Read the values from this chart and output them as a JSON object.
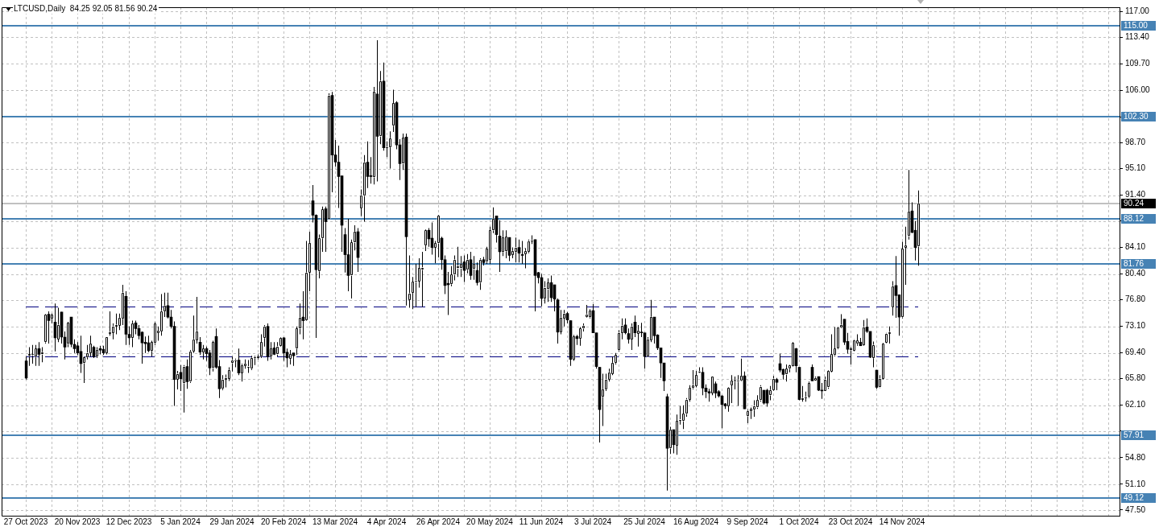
{
  "chart_data": {
    "type": "candlestick",
    "title": "LTCUSD,Daily  84.25 92.05 81.56 90.24",
    "categories": [
      "27 Oct 2023",
      null,
      null,
      null,
      null,
      null,
      null,
      null,
      null,
      null,
      null,
      null,
      null,
      null,
      null,
      null,
      "20 Nov 2023",
      null,
      null,
      null,
      null,
      null,
      null,
      null,
      null,
      null,
      null,
      null,
      null,
      null,
      null,
      null,
      "12 Dec 2023",
      null,
      null,
      null,
      null,
      null,
      null,
      null,
      null,
      null,
      null,
      null,
      null,
      null,
      null,
      null,
      "5 Jan 2024",
      null,
      null,
      null,
      null,
      null,
      null,
      null,
      null,
      null,
      null,
      null,
      null,
      null,
      null,
      null,
      "29 Jan 2024",
      null,
      null,
      null,
      null,
      null,
      null,
      null,
      null,
      null,
      null,
      null,
      null,
      null,
      null,
      null,
      "20 Feb 2024",
      null,
      null,
      null,
      null,
      null,
      null,
      null,
      null,
      null,
      null,
      null,
      null,
      null,
      null,
      null,
      "13 Mar 2024",
      null,
      null,
      null,
      null,
      null,
      null,
      null,
      null,
      null,
      null,
      null,
      null,
      null,
      null,
      null,
      "4 Apr 2024",
      null,
      null,
      null,
      null,
      null,
      null,
      null,
      null,
      null,
      null,
      null,
      null,
      null,
      null,
      null,
      "26 Apr 2024",
      null,
      null,
      null,
      null,
      null,
      null,
      null,
      null,
      null,
      null,
      null,
      null,
      null,
      null,
      null,
      "20 May 2024",
      null,
      null,
      null,
      null,
      null,
      null,
      null,
      null,
      null,
      null,
      null,
      null,
      null,
      null,
      null,
      "11 Jun 2024",
      null,
      null,
      null,
      null,
      null,
      null,
      null,
      null,
      null,
      null,
      null,
      null,
      null,
      null,
      null,
      "3 Jul 2024",
      null,
      null,
      null,
      null,
      null,
      null,
      null,
      null,
      null,
      null,
      null,
      null,
      null,
      null,
      null,
      "25 Jul 2024",
      null,
      null,
      null,
      null,
      null,
      null,
      null,
      null,
      null,
      null,
      null,
      null,
      null,
      null,
      null,
      "16 Aug 2024",
      null,
      null,
      null,
      null,
      null,
      null,
      null,
      null,
      null,
      null,
      null,
      null,
      null,
      null,
      null,
      "9 Sep 2024",
      null,
      null,
      null,
      null,
      null,
      null,
      null,
      null,
      null,
      null,
      null,
      null,
      null,
      null,
      null,
      "1 Oct 2024",
      null,
      null,
      null,
      null,
      null,
      null,
      null,
      null,
      null,
      null,
      null,
      null,
      null,
      null,
      null,
      "23 Oct 2024",
      null,
      null,
      null,
      null,
      null,
      null,
      null,
      null,
      null,
      null,
      null,
      null,
      null,
      null,
      null,
      "14 Nov 2024",
      null,
      null,
      null,
      null,
      null,
      null,
      null,
      null,
      null,
      null,
      null,
      null,
      null,
      null,
      null,
      null,
      null,
      null,
      null,
      null,
      null,
      null,
      null,
      null,
      null,
      null,
      null,
      null,
      null,
      null,
      null,
      null,
      null,
      null,
      null,
      null,
      null,
      null,
      null,
      null,
      null,
      null,
      null,
      null,
      null,
      null,
      null,
      null,
      null,
      null,
      null,
      null,
      null,
      null,
      null,
      null,
      null,
      null,
      null,
      null,
      null,
      null,
      null,
      null,
      null,
      null,
      null
    ],
    "ohlc": [
      [
        68.3,
        68.9,
        65.7,
        65.9
      ],
      [
        69.0,
        70.2,
        67.6,
        69.2
      ],
      [
        69.1,
        70.5,
        67.9,
        69.2
      ],
      [
        68.9,
        70.5,
        67.6,
        70.0
      ],
      [
        70.0,
        70.9,
        67.6,
        69.2
      ],
      [
        69.2,
        70.2,
        68.1,
        69.5
      ],
      [
        70.9,
        74.8,
        70.7,
        74.7
      ],
      [
        74.8,
        75.2,
        70.7,
        73.9
      ],
      [
        74.2,
        74.9,
        73.5,
        74.7
      ],
      [
        73.7,
        76.3,
        69.6,
        71.5
      ],
      [
        71.3,
        75.7,
        70.9,
        73.3
      ],
      [
        75.1,
        75.1,
        70.7,
        71.6
      ],
      [
        71.6,
        72.4,
        68.5,
        70.2
      ],
      [
        70.7,
        73.7,
        70.2,
        73.6
      ],
      [
        74.4,
        74.4,
        70.2,
        70.6
      ],
      [
        70.6,
        71.3,
        69.4,
        70.0
      ],
      [
        70.4,
        70.9,
        69.1,
        69.4
      ],
      [
        69.6,
        71.8,
        66.6,
        67.9
      ],
      [
        68.0,
        68.9,
        65.2,
        68.8
      ],
      [
        68.8,
        70.5,
        68.5,
        69.4
      ],
      [
        69.4,
        71.8,
        68.9,
        70.7
      ],
      [
        70.2,
        70.4,
        68.7,
        68.9
      ],
      [
        68.9,
        70.2,
        68.7,
        69.8
      ],
      [
        70.0,
        70.4,
        69.2,
        69.8
      ],
      [
        69.9,
        70.4,
        69.1,
        69.4
      ],
      [
        69.4,
        71.6,
        69.2,
        71.6
      ],
      [
        72.1,
        75.2,
        71.8,
        72.3
      ],
      [
        72.2,
        73.5,
        71.3,
        73.1
      ],
      [
        73.1,
        74.9,
        72.0,
        73.3
      ],
      [
        73.2,
        74.9,
        72.6,
        74.3
      ],
      [
        74.2,
        78.9,
        73.3,
        77.8
      ],
      [
        77.3,
        78.0,
        70.5,
        72.0
      ],
      [
        72.0,
        73.1,
        70.5,
        71.5
      ],
      [
        71.5,
        73.9,
        70.2,
        73.5
      ],
      [
        73.6,
        73.9,
        72.0,
        72.8
      ],
      [
        72.8,
        73.3,
        71.3,
        71.8
      ],
      [
        72.3,
        72.4,
        67.9,
        70.8
      ],
      [
        70.9,
        71.7,
        69.4,
        70.7
      ],
      [
        70.8,
        71.8,
        69.5,
        69.7
      ],
      [
        69.7,
        71.1,
        68.9,
        70.9
      ],
      [
        70.8,
        73.7,
        70.5,
        73.5
      ],
      [
        72.2,
        73.1,
        71.1,
        72.5
      ],
      [
        72.4,
        77.6,
        71.8,
        75.2
      ],
      [
        75.2,
        77.8,
        74.4,
        76.0
      ],
      [
        76.0,
        77.8,
        74.2,
        74.4
      ],
      [
        74.4,
        75.4,
        72.8,
        73.1
      ],
      [
        73.1,
        73.8,
        62.0,
        65.7
      ],
      [
        65.7,
        66.9,
        64.3,
        66.5
      ],
      [
        66.7,
        67.7,
        64.1,
        65.8
      ],
      [
        65.2,
        67.7,
        61.1,
        67.5
      ],
      [
        67.5,
        68.5,
        64.4,
        65.4
      ],
      [
        65.4,
        69.8,
        65.2,
        69.6
      ],
      [
        69.6,
        74.6,
        69.4,
        71.3
      ],
      [
        71.2,
        77.2,
        70.7,
        72.4
      ],
      [
        70.9,
        71.6,
        69.1,
        69.5
      ],
      [
        69.5,
        70.5,
        68.5,
        70.0
      ],
      [
        70.0,
        70.3,
        68.3,
        69.3
      ],
      [
        69.4,
        69.8,
        66.3,
        67.3
      ],
      [
        67.3,
        71.1,
        66.8,
        70.9
      ],
      [
        71.7,
        72.8,
        67.2,
        67.4
      ],
      [
        67.5,
        68.4,
        63.1,
        64.4
      ],
      [
        64.4,
        66.3,
        64.2,
        65.7
      ],
      [
        65.7,
        66.4,
        64.6,
        65.9
      ],
      [
        65.8,
        67.4,
        65.5,
        67.0
      ],
      [
        68.0,
        68.9,
        66.8,
        68.4
      ],
      [
        68.3,
        68.6,
        67.4,
        68.4
      ],
      [
        68.4,
        70.0,
        66.3,
        66.6
      ],
      [
        66.6,
        67.9,
        65.4,
        67.7
      ],
      [
        67.6,
        68.5,
        67.2,
        67.9
      ],
      [
        67.4,
        68.4,
        66.6,
        67.5
      ],
      [
        67.2,
        69.0,
        67.0,
        68.7
      ],
      [
        68.7,
        69.0,
        67.7,
        68.8
      ],
      [
        68.7,
        69.2,
        68.5,
        68.9
      ],
      [
        68.9,
        72.0,
        68.7,
        70.9
      ],
      [
        71.5,
        73.3,
        70.3,
        73.1
      ],
      [
        73.1,
        73.5,
        68.3,
        68.9
      ],
      [
        68.9,
        70.9,
        68.5,
        70.0
      ],
      [
        70.1,
        70.9,
        69.1,
        69.2
      ],
      [
        69.2,
        70.9,
        68.9,
        70.3
      ],
      [
        70.4,
        71.6,
        70.3,
        71.5
      ],
      [
        71.5,
        71.6,
        68.3,
        69.4
      ],
      [
        69.5,
        70.0,
        67.4,
        68.7
      ],
      [
        68.6,
        69.8,
        67.8,
        69.2
      ],
      [
        69.4,
        69.4,
        67.6,
        69.0
      ],
      [
        70.0,
        73.1,
        69.1,
        72.8
      ],
      [
        72.8,
        76.3,
        72.0,
        74.3
      ],
      [
        74.4,
        78.0,
        71.3,
        73.9
      ],
      [
        74.0,
        85.0,
        73.9,
        80.6
      ],
      [
        80.6,
        86.3,
        78.0,
        84.7
      ],
      [
        90.6,
        92.8,
        87.6,
        88.6
      ],
      [
        88.6,
        88.7,
        71.5,
        81.0
      ],
      [
        80.8,
        85.9,
        79.8,
        85.4
      ],
      [
        85.4,
        89.8,
        83.5,
        89.4
      ],
      [
        89.5,
        89.8,
        83.5,
        87.7
      ],
      [
        88.1,
        105.6,
        88.0,
        105.3
      ],
      [
        105.3,
        105.8,
        91.8,
        97.0
      ],
      [
        97.0,
        99.1,
        95.4,
        96.0
      ],
      [
        96.0,
        98.3,
        89.6,
        94.0
      ],
      [
        94.1,
        94.1,
        83.5,
        87.2
      ],
      [
        85.9,
        86.8,
        80.6,
        83.1
      ],
      [
        83.1,
        88.1,
        78.0,
        80.2
      ],
      [
        80.2,
        85.2,
        77.0,
        84.8
      ],
      [
        84.8,
        87.2,
        83.7,
        86.3
      ],
      [
        86.3,
        86.8,
        80.7,
        82.7
      ],
      [
        89.6,
        92.2,
        88.5,
        91.4
      ],
      [
        91.3,
        97.0,
        87.7,
        96.0
      ],
      [
        96.0,
        98.9,
        92.4,
        94.0
      ],
      [
        94.1,
        96.7,
        93.0,
        94.0
      ],
      [
        93.9,
        106.5,
        92.9,
        105.8
      ],
      [
        105.5,
        113.0,
        93.3,
        99.6
      ],
      [
        99.6,
        108.7,
        98.5,
        107.3
      ],
      [
        107.3,
        109.9,
        97.6,
        98.0
      ],
      [
        98.0,
        98.9,
        96.7,
        98.1
      ],
      [
        98.1,
        100.3,
        95.1,
        99.3
      ],
      [
        101.1,
        106.1,
        100.2,
        104.2
      ],
      [
        104.3,
        104.5,
        97.8,
        98.4
      ],
      [
        98.4,
        99.2,
        93.5,
        95.8
      ],
      [
        95.8,
        100.0,
        94.9,
        99.4
      ],
      [
        99.5,
        100.0,
        76.0,
        85.6
      ],
      [
        76.8,
        83.0,
        75.7,
        77.7
      ],
      [
        77.8,
        80.0,
        75.5,
        79.3
      ],
      [
        79.3,
        81.8,
        75.8,
        79.5
      ],
      [
        79.4,
        82.6,
        78.5,
        81.2
      ],
      [
        81.0,
        83.5,
        75.8,
        81.3
      ],
      [
        84.4,
        86.6,
        83.6,
        86.5
      ],
      [
        86.5,
        86.8,
        84.2,
        85.3
      ],
      [
        85.4,
        87.6,
        83.1,
        84.1
      ],
      [
        84.1,
        85.0,
        81.9,
        84.7
      ],
      [
        84.7,
        88.6,
        82.7,
        88.5
      ],
      [
        85.4,
        85.6,
        81.0,
        82.4
      ],
      [
        82.4,
        83.0,
        77.6,
        78.8
      ],
      [
        79.1,
        80.7,
        74.7,
        78.9
      ],
      [
        79.0,
        81.5,
        78.7,
        80.3
      ],
      [
        80.3,
        83.0,
        79.5,
        82.4
      ],
      [
        81.2,
        84.2,
        80.0,
        81.5
      ],
      [
        81.2,
        82.9,
        80.0,
        81.8
      ],
      [
        82.1,
        83.0,
        79.3,
        80.9
      ],
      [
        81.0,
        83.2,
        80.5,
        82.4
      ],
      [
        82.4,
        83.5,
        79.6,
        80.2
      ],
      [
        81.1,
        82.9,
        79.6,
        81.8
      ],
      [
        80.9,
        82.0,
        78.8,
        79.2
      ],
      [
        79.2,
        82.6,
        78.2,
        82.4
      ],
      [
        82.4,
        82.8,
        81.6,
        82.0
      ],
      [
        82.1,
        84.2,
        81.8,
        83.9
      ],
      [
        82.4,
        87.0,
        81.8,
        86.5
      ],
      [
        86.5,
        89.7,
        86.1,
        88.1
      ],
      [
        88.5,
        88.5,
        84.8,
        85.9
      ],
      [
        85.7,
        87.9,
        80.7,
        83.5
      ],
      [
        83.5,
        86.5,
        82.9,
        85.5
      ],
      [
        83.6,
        86.5,
        82.6,
        85.6
      ],
      [
        85.5,
        85.5,
        82.2,
        83.0
      ],
      [
        83.1,
        84.1,
        82.6,
        83.6
      ],
      [
        83.5,
        85.5,
        82.0,
        84.1
      ],
      [
        84.1,
        85.2,
        82.0,
        83.3
      ],
      [
        83.1,
        85.0,
        81.8,
        83.0
      ],
      [
        83.2,
        84.0,
        81.2,
        83.6
      ],
      [
        83.5,
        85.2,
        83.3,
        85.0
      ],
      [
        85.0,
        85.8,
        84.6,
        85.1
      ],
      [
        85.2,
        85.2,
        75.2,
        80.2
      ],
      [
        80.6,
        80.7,
        79.1,
        79.9
      ],
      [
        79.9,
        80.4,
        75.9,
        77.0
      ],
      [
        77.0,
        79.4,
        76.3,
        78.5
      ],
      [
        78.3,
        79.8,
        76.5,
        79.2
      ],
      [
        79.2,
        80.2,
        76.5,
        77.1
      ],
      [
        78.9,
        78.9,
        75.2,
        76.9
      ],
      [
        76.8,
        77.0,
        70.7,
        72.3
      ],
      [
        72.3,
        75.4,
        72.0,
        74.3
      ],
      [
        74.2,
        75.4,
        73.1,
        74.9
      ],
      [
        74.9,
        75.1,
        73.5,
        74.0
      ],
      [
        73.9,
        73.9,
        67.6,
        68.5
      ],
      [
        68.5,
        71.9,
        68.3,
        71.7
      ],
      [
        71.7,
        71.9,
        70.5,
        71.4
      ],
      [
        71.4,
        73.0,
        70.4,
        72.8
      ],
      [
        72.8,
        73.5,
        72.4,
        73.2
      ],
      [
        74.4,
        76.1,
        74.3,
        74.8
      ],
      [
        74.4,
        75.5,
        74.2,
        75.3
      ],
      [
        75.3,
        76.2,
        72.2,
        72.2
      ],
      [
        72.2,
        72.2,
        67.2,
        67.5
      ],
      [
        67.4,
        67.4,
        56.9,
        61.5
      ],
      [
        63.3,
        66.5,
        59.2,
        64.3
      ],
      [
        64.3,
        66.5,
        64.1,
        65.7
      ],
      [
        65.7,
        67.2,
        65.4,
        66.7
      ],
      [
        66.5,
        68.9,
        66.3,
        68.0
      ],
      [
        68.0,
        69.4,
        67.8,
        69.1
      ],
      [
        69.8,
        72.6,
        69.6,
        72.2
      ],
      [
        72.2,
        74.2,
        71.3,
        73.2
      ],
      [
        73.3,
        74.2,
        72.0,
        72.2
      ],
      [
        72.1,
        72.8,
        70.7,
        71.3
      ],
      [
        71.3,
        73.5,
        69.8,
        73.1
      ],
      [
        73.7,
        74.6,
        71.6,
        72.2
      ],
      [
        72.1,
        73.3,
        70.3,
        72.5
      ],
      [
        72.3,
        73.6,
        71.6,
        72.2
      ],
      [
        72.2,
        72.2,
        67.2,
        68.9
      ],
      [
        68.9,
        71.6,
        68.8,
        71.3
      ],
      [
        71.2,
        76.8,
        70.9,
        74.4
      ],
      [
        74.4,
        74.4,
        70.7,
        71.8
      ],
      [
        71.9,
        72.0,
        69.8,
        70.1
      ],
      [
        70.1,
        70.1,
        65.9,
        68.0
      ],
      [
        68.0,
        68.0,
        64.1,
        65.5
      ],
      [
        63.3,
        63.7,
        50.2,
        56.1
      ],
      [
        56.1,
        59.1,
        55.3,
        58.7
      ],
      [
        58.7,
        58.7,
        55.4,
        56.6
      ],
      [
        56.5,
        60.8,
        55.2,
        59.9
      ],
      [
        60.0,
        62.0,
        59.4,
        60.1
      ],
      [
        59.9,
        62.1,
        58.8,
        60.9
      ],
      [
        60.9,
        63.1,
        60.5,
        62.9
      ],
      [
        62.9,
        64.9,
        62.6,
        64.5
      ],
      [
        64.5,
        67.0,
        64.3,
        64.9
      ],
      [
        64.8,
        66.9,
        64.6,
        66.3
      ],
      [
        66.7,
        67.4,
        66.6,
        66.8
      ],
      [
        66.7,
        67.4,
        63.5,
        64.5
      ],
      [
        64.5,
        65.0,
        63.1,
        64.0
      ],
      [
        64.0,
        64.4,
        62.6,
        63.8
      ],
      [
        63.8,
        66.1,
        63.5,
        66.1
      ],
      [
        65.1,
        65.4,
        63.1,
        63.8
      ],
      [
        64.0,
        64.2,
        63.2,
        63.4
      ],
      [
        63.4,
        63.5,
        58.9,
        62.2
      ],
      [
        62.3,
        62.4,
        61.6,
        62.0
      ],
      [
        62.0,
        64.6,
        61.2,
        64.5
      ],
      [
        64.9,
        66.3,
        62.4,
        65.5
      ],
      [
        65.4,
        66.1,
        64.3,
        65.5
      ],
      [
        65.4,
        66.3,
        62.0,
        65.6
      ],
      [
        65.5,
        68.6,
        65.4,
        66.2
      ],
      [
        66.2,
        66.8,
        61.6,
        61.6
      ],
      [
        60.6,
        61.5,
        59.6,
        61.3
      ],
      [
        61.3,
        61.8,
        60.2,
        61.6
      ],
      [
        61.5,
        62.8,
        60.5,
        62.0
      ],
      [
        61.8,
        63.5,
        61.6,
        62.8
      ],
      [
        62.8,
        64.9,
        62.6,
        64.7
      ],
      [
        64.2,
        64.2,
        62.2,
        62.4
      ],
      [
        64.2,
        64.4,
        61.9,
        62.4
      ],
      [
        63.5,
        64.8,
        62.8,
        64.2
      ],
      [
        64.2,
        66.2,
        64.1,
        65.8
      ],
      [
        65.7,
        65.9,
        64.2,
        65.3
      ],
      [
        67.9,
        69.3,
        66.7,
        67.0
      ],
      [
        67.1,
        67.2,
        65.7,
        66.4
      ],
      [
        66.4,
        67.8,
        65.4,
        67.2
      ],
      [
        67.2,
        67.8,
        66.7,
        67.7
      ],
      [
        67.6,
        70.9,
        67.5,
        70.8
      ],
      [
        70.0,
        70.1,
        66.7,
        67.6
      ],
      [
        67.4,
        67.4,
        62.8,
        62.9
      ],
      [
        62.9,
        64.8,
        62.6,
        63.1
      ],
      [
        63.1,
        64.0,
        62.6,
        63.2
      ],
      [
        63.3,
        65.4,
        63.1,
        65.2
      ],
      [
        67.4,
        67.8,
        65.5,
        65.5
      ],
      [
        65.5,
        66.1,
        65.5,
        65.9
      ],
      [
        66.1,
        66.1,
        64.1,
        64.2
      ],
      [
        64.2,
        65.2,
        63.0,
        64.1
      ],
      [
        64.1,
        66.1,
        64.1,
        65.7
      ],
      [
        64.6,
        67.0,
        64.4,
        66.9
      ],
      [
        66.8,
        72.0,
        66.7,
        69.2
      ],
      [
        69.1,
        73.0,
        68.9,
        70.0
      ],
      [
        70.0,
        73.1,
        69.9,
        73.0
      ],
      [
        72.9,
        74.8,
        72.8,
        73.3
      ],
      [
        74.1,
        74.1,
        70.5,
        70.9
      ],
      [
        71.0,
        72.2,
        69.3,
        69.9
      ],
      [
        69.8,
        70.2,
        67.8,
        70.0
      ],
      [
        69.7,
        71.3,
        69.6,
        71.2
      ],
      [
        70.7,
        72.0,
        70.4,
        71.1
      ],
      [
        70.9,
        71.5,
        70.4,
        70.4
      ],
      [
        70.5,
        74.0,
        70.4,
        73.0
      ],
      [
        73.0,
        74.2,
        72.2,
        72.4
      ],
      [
        72.4,
        72.4,
        68.7,
        68.8
      ],
      [
        68.7,
        71.0,
        67.4,
        70.5
      ],
      [
        67.0,
        67.0,
        64.4,
        64.6
      ],
      [
        64.6,
        66.3,
        64.5,
        65.8
      ],
      [
        65.8,
        70.8,
        65.7,
        70.7
      ],
      [
        70.8,
        72.2,
        70.7,
        72.1
      ],
      [
        72.1,
        73.1,
        70.7,
        72.3
      ],
      [
        75.8,
        79.4,
        74.6,
        78.7
      ],
      [
        78.8,
        82.9,
        74.3,
        77.4
      ],
      [
        77.5,
        77.5,
        71.8,
        74.4
      ],
      [
        74.4,
        84.9,
        74.2,
        83.9
      ],
      [
        84.1,
        87.0,
        78.9,
        84.4
      ],
      [
        85.7,
        94.9,
        85.2,
        89.1
      ],
      [
        89.2,
        90.4,
        86.1,
        86.2
      ],
      [
        86.5,
        87.8,
        82.3,
        84.1
      ],
      [
        84.25,
        92.05,
        81.56,
        90.24
      ],
      null,
      null,
      null,
      null,
      null,
      null,
      null,
      null,
      null,
      null,
      null,
      null,
      null,
      null,
      null,
      null,
      null,
      null,
      null,
      null,
      null,
      null,
      null,
      null,
      null,
      null,
      null,
      null,
      null,
      null,
      null,
      null,
      null,
      null,
      null,
      null,
      null,
      null,
      null,
      null,
      null,
      null,
      null,
      null,
      null,
      null,
      null,
      null,
      null,
      null,
      null,
      null,
      null,
      null,
      null,
      null,
      null,
      null,
      null,
      null,
      null,
      null
    ],
    "colors": [
      "#000000",
      "#ffffff",
      "#ffffff",
      "#ffffff",
      "#000000",
      "#ffffff",
      "#ffffff",
      "#000000",
      "#ffffff",
      "#000000",
      "#ffffff",
      "#000000",
      "#000000",
      "#ffffff",
      "#000000",
      "#000000",
      "#000000",
      "#000000",
      "#ffffff",
      "#ffffff",
      "#ffffff",
      "#000000",
      "#ffffff",
      "#000000",
      "#000000",
      "#ffffff",
      "#ffffff",
      "#ffffff",
      "#ffffff",
      "#ffffff",
      "#ffffff",
      "#000000",
      "#000000",
      "#ffffff",
      "#000000",
      "#000000",
      "#000000",
      "#000000",
      "#000000",
      "#ffffff",
      "#ffffff",
      "#ffffff",
      "#ffffff",
      "#ffffff",
      "#000000",
      "#000000",
      "#000000",
      "#ffffff",
      "#000000",
      "#ffffff",
      "#000000",
      "#ffffff",
      "#ffffff",
      "#ffffff",
      "#000000",
      "#ffffff",
      "#000000",
      "#000000",
      "#ffffff",
      "#000000",
      "#000000",
      "#ffffff",
      "#ffffff",
      "#ffffff",
      "#ffffff",
      "#ffffff",
      "#000000",
      "#ffffff",
      "#ffffff",
      "#ffffff",
      "#ffffff",
      "#ffffff",
      "#ffffff",
      "#ffffff",
      "#ffffff",
      "#000000",
      "#ffffff",
      "#000000",
      "#ffffff",
      "#ffffff",
      "#000000",
      "#000000",
      "#ffffff",
      "#000000",
      "#ffffff",
      "#ffffff",
      "#000000",
      "#ffffff",
      "#ffffff",
      "#000000",
      "#000000",
      "#ffffff",
      "#ffffff",
      "#000000",
      "#ffffff",
      "#000000",
      "#000000",
      "#000000",
      "#000000",
      "#000000",
      "#000000",
      "#ffffff",
      "#ffffff",
      "#000000",
      "#ffffff",
      "#ffffff",
      "#000000",
      "#000000",
      "#ffffff",
      "#000000",
      "#ffffff",
      "#000000",
      "#ffffff",
      "#ffffff",
      "#ffffff",
      "#000000",
      "#000000",
      "#ffffff",
      "#000000",
      "#ffffff",
      "#ffffff",
      "#ffffff",
      "#ffffff",
      "#ffffff",
      "#ffffff",
      "#000000",
      "#000000",
      "#ffffff",
      "#ffffff",
      "#000000",
      "#000000",
      "#000000",
      "#ffffff",
      "#ffffff",
      "#ffffff",
      "#ffffff",
      "#000000",
      "#ffffff",
      "#000000",
      "#ffffff",
      "#000000",
      "#ffffff",
      "#000000",
      "#ffffff",
      "#ffffff",
      "#ffffff",
      "#000000",
      "#000000",
      "#ffffff",
      "#ffffff",
      "#000000",
      "#ffffff",
      "#ffffff",
      "#000000",
      "#000000",
      "#ffffff",
      "#ffffff",
      "#ffffff",
      "#000000",
      "#000000",
      "#000000",
      "#ffffff",
      "#ffffff",
      "#000000",
      "#000000",
      "#000000",
      "#ffffff",
      "#ffffff",
      "#000000",
      "#000000",
      "#ffffff",
      "#000000",
      "#ffffff",
      "#ffffff",
      "#ffffff",
      "#ffffff",
      "#000000",
      "#000000",
      "#000000",
      "#ffffff",
      "#ffffff",
      "#ffffff",
      "#ffffff",
      "#ffffff",
      "#ffffff",
      "#ffffff",
      "#000000",
      "#000000",
      "#ffffff",
      "#000000",
      "#ffffff",
      "#000000",
      "#000000",
      "#ffffff",
      "#ffffff",
      "#000000",
      "#000000",
      "#000000",
      "#000000",
      "#000000",
      "#ffffff",
      "#000000",
      "#ffffff",
      "#ffffff",
      "#ffffff",
      "#ffffff",
      "#ffffff",
      "#ffffff",
      "#ffffff",
      "#ffffff",
      "#000000",
      "#000000",
      "#000000",
      "#ffffff",
      "#000000",
      "#000000",
      "#000000",
      "#000000",
      "#ffffff",
      "#ffffff",
      "#ffffff",
      "#ffffff",
      "#ffffff",
      "#000000",
      "#ffffff",
      "#ffffff",
      "#ffffff",
      "#ffffff",
      "#ffffff",
      "#000000",
      "#000000",
      "#ffffff",
      "#ffffff",
      "#000000",
      "#000000",
      "#000000",
      "#ffffff",
      "#ffffff",
      "#ffffff",
      "#000000",
      "#000000",
      "#ffffff",
      "#ffffff",
      "#ffffff",
      "#000000",
      "#ffffff",
      "#000000",
      "#000000",
      "#ffffff",
      "#ffffff",
      "#ffffff",
      "#ffffff",
      "#ffffff",
      "#ffffff",
      "#000000",
      "#000000",
      "#ffffff",
      "#ffffff",
      "#ffffff",
      "#000000",
      "#ffffff",
      "#000000",
      "#000000",
      "#ffffff",
      "#000000",
      "#ffffff",
      "#ffffff",
      "#ffffff",
      "#ffffff",
      "#ffffff",
      "#000000",
      "#000000",
      "#ffffff",
      "#ffffff",
      "#ffffff",
      "#000000",
      "#000000",
      "#ffffff",
      null,
      null,
      null,
      null,
      null,
      null,
      null,
      null,
      null,
      null,
      null,
      null,
      null,
      null,
      null,
      null,
      null,
      null,
      null,
      null,
      null,
      null,
      null,
      null,
      null,
      null,
      null,
      null,
      null,
      null,
      null,
      null,
      null,
      null,
      null,
      null,
      null,
      null,
      null,
      null,
      null,
      null,
      null,
      null,
      null,
      null,
      null,
      null,
      null,
      null,
      null,
      null,
      null,
      null,
      null,
      null,
      null,
      null,
      null,
      null,
      null,
      null
    ],
    "ylim": [
      46.7,
      117.6
    ],
    "yticks": [
      {
        "value": 47.5,
        "label": "47.50"
      },
      {
        "value": 51.1,
        "label": "51.10"
      },
      {
        "value": 54.8,
        "label": "54.80"
      },
      {
        "value": 58.5,
        "label": null
      },
      {
        "value": 62.1,
        "label": "62.10"
      },
      {
        "value": 65.8,
        "label": "65.80"
      },
      {
        "value": 69.4,
        "label": "69.40"
      },
      {
        "value": 73.1,
        "label": "73.10"
      },
      {
        "value": 76.8,
        "label": "76.80"
      },
      {
        "value": 80.4,
        "label": "80.40"
      },
      {
        "value": 84.1,
        "label": "84.10"
      },
      {
        "value": 87.8,
        "label": null
      },
      {
        "value": 91.4,
        "label": "91.40"
      },
      {
        "value": 95.1,
        "label": "95.10"
      },
      {
        "value": 98.7,
        "label": "98.70"
      },
      {
        "value": 102.3,
        "label": null
      },
      {
        "value": 106.0,
        "label": "106.00"
      },
      {
        "value": 109.7,
        "label": "109.70"
      },
      {
        "value": 113.4,
        "label": "113.40"
      },
      {
        "value": 117.0,
        "label": "117.00"
      }
    ],
    "grid": true,
    "ref_lines": [
      {
        "axis": "y",
        "value": 115.0,
        "label": "115.00",
        "color": "#4682b4"
      },
      {
        "axis": "y",
        "value": 102.3,
        "label": "102.30",
        "color": "#4682b4"
      },
      {
        "axis": "y",
        "value": 88.12,
        "label": "88.12",
        "color": "#4682b4"
      },
      {
        "axis": "y",
        "value": 81.76,
        "label": "81.76",
        "color": "#4682b4"
      },
      {
        "axis": "y",
        "value": 57.91,
        "label": "57.91",
        "color": "#4682b4"
      },
      {
        "axis": "y",
        "value": 49.12,
        "label": "49.12",
        "color": "#4682b4"
      },
      {
        "axis": "y",
        "value": 90.24,
        "label": "90.24",
        "color": "#c0c0c0"
      },
      {
        "axis": "y",
        "value": 75.9,
        "color": "#000080",
        "line_style": "dashed"
      },
      {
        "axis": "y",
        "value": 68.9,
        "color": "#000080",
        "line_style": "dashed"
      }
    ]
  }
}
